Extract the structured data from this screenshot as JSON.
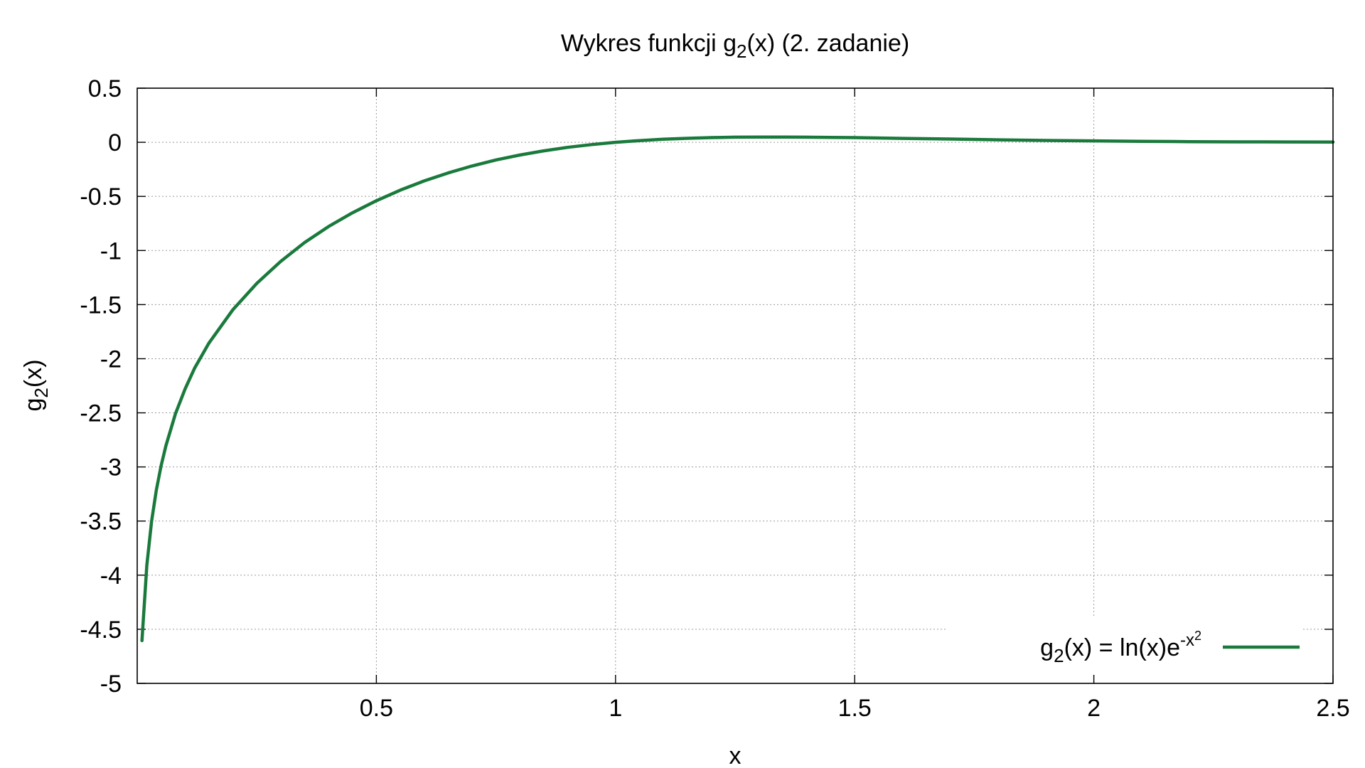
{
  "chart_data": {
    "type": "line",
    "title": {
      "main": "Wykres funkcji g",
      "sub": "2",
      "rest": "(x) (2. zadanie)"
    },
    "xlabel": "x",
    "ylabel": {
      "main": "g",
      "sub": "2",
      "rest": "(x)"
    },
    "xlim": [
      0,
      2.5
    ],
    "ylim": [
      -5,
      0.5
    ],
    "x_ticks": [
      0.5,
      1,
      1.5,
      2,
      2.5
    ],
    "x_tick_labels": [
      "0.5",
      "1",
      "1.5",
      "2",
      "2.5"
    ],
    "y_ticks": [
      0.5,
      0,
      -0.5,
      -1,
      -1.5,
      -2,
      -2.5,
      -3,
      -3.5,
      -4,
      -4.5,
      -5
    ],
    "y_tick_labels": [
      "0.5",
      "0",
      "-0.5",
      "-1",
      "-1.5",
      "-2",
      "-2.5",
      "-3",
      "-3.5",
      "-4",
      "-4.5",
      "-5"
    ],
    "grid": true,
    "legend": {
      "position": "bottom-right",
      "label_main": "g",
      "label_sub": "2",
      "label_mid": "(x) = ln(x)e",
      "label_sup1": "-x",
      "label_sup2": "2"
    },
    "series": [
      {
        "name": "g2(x) = ln(x)e^(-x^2)",
        "color": "#1a7a3c",
        "x": [
          0.01,
          0.02,
          0.03,
          0.04,
          0.05,
          0.06,
          0.08,
          0.1,
          0.12,
          0.15,
          0.2,
          0.25,
          0.3,
          0.35,
          0.4,
          0.45,
          0.5,
          0.55,
          0.6,
          0.65,
          0.7,
          0.75,
          0.8,
          0.85,
          0.9,
          0.95,
          1.0,
          1.05,
          1.1,
          1.15,
          1.2,
          1.25,
          1.3,
          1.35,
          1.4,
          1.45,
          1.5,
          1.6,
          1.7,
          1.8,
          1.9,
          2.0,
          2.1,
          2.2,
          2.3,
          2.4,
          2.5
        ],
        "y": [
          -4.605,
          -3.911,
          -3.503,
          -3.214,
          -2.989,
          -2.803,
          -2.508,
          -2.28,
          -2.088,
          -1.855,
          -1.547,
          -1.304,
          -1.101,
          -0.926,
          -0.779,
          -0.651,
          -0.54,
          -0.442,
          -0.357,
          -0.283,
          -0.219,
          -0.163,
          -0.118,
          -0.079,
          -0.047,
          -0.021,
          0.0,
          0.016,
          0.028,
          0.037,
          0.043,
          0.047,
          0.048,
          0.048,
          0.047,
          0.045,
          0.043,
          0.036,
          0.03,
          0.023,
          0.017,
          0.013,
          0.009,
          0.006,
          0.004,
          0.003,
          0.002
        ]
      }
    ]
  }
}
